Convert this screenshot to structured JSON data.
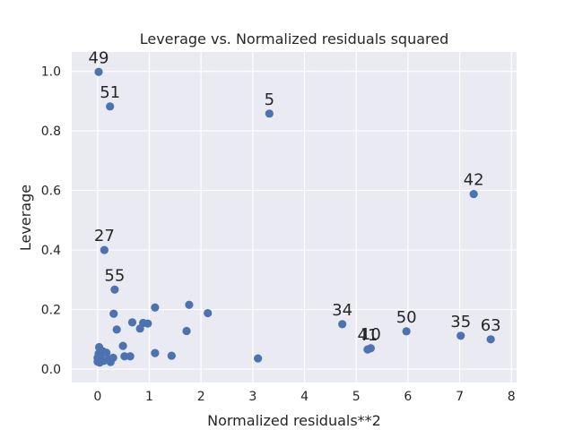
{
  "chart_data": {
    "type": "scatter",
    "title": "Leverage vs. Normalized residuals squared",
    "xlabel": "Normalized residuals**2",
    "ylabel": "Leverage",
    "xlim": [
      -0.5,
      8.1
    ],
    "ylim": [
      -0.045,
      1.065
    ],
    "xticks": [
      0,
      1,
      2,
      3,
      4,
      5,
      6,
      7,
      8
    ],
    "yticks": [
      0.0,
      0.2,
      0.4,
      0.6,
      0.8,
      1.0
    ],
    "xtick_labels": [
      "0",
      "1",
      "2",
      "3",
      "4",
      "5",
      "6",
      "7",
      "8"
    ],
    "ytick_labels": [
      "0.0",
      "0.2",
      "0.4",
      "0.6",
      "0.8",
      "1.0"
    ],
    "grid": true,
    "color": "#4c72b0",
    "background": "#eaeaf2",
    "points": [
      {
        "x": 0.02,
        "y": 0.998,
        "label": "49"
      },
      {
        "x": 0.24,
        "y": 0.882,
        "label": "51"
      },
      {
        "x": 3.32,
        "y": 0.858,
        "label": "5"
      },
      {
        "x": 7.27,
        "y": 0.588,
        "label": "42"
      },
      {
        "x": 0.13,
        "y": 0.4,
        "label": "27"
      },
      {
        "x": 0.33,
        "y": 0.267,
        "label": "55"
      },
      {
        "x": 4.73,
        "y": 0.151,
        "label": "34"
      },
      {
        "x": 5.97,
        "y": 0.127,
        "label": "50"
      },
      {
        "x": 7.02,
        "y": 0.112,
        "label": "35"
      },
      {
        "x": 7.6,
        "y": 0.1,
        "label": "63"
      },
      {
        "x": 5.22,
        "y": 0.066,
        "label": "41"
      },
      {
        "x": 5.28,
        "y": 0.07,
        "label": "10"
      },
      {
        "x": 1.11,
        "y": 0.207,
        "label": ""
      },
      {
        "x": 1.77,
        "y": 0.216,
        "label": ""
      },
      {
        "x": 2.13,
        "y": 0.188,
        "label": ""
      },
      {
        "x": 0.31,
        "y": 0.186,
        "label": ""
      },
      {
        "x": 0.67,
        "y": 0.157,
        "label": ""
      },
      {
        "x": 0.88,
        "y": 0.155,
        "label": ""
      },
      {
        "x": 0.97,
        "y": 0.153,
        "label": ""
      },
      {
        "x": 0.82,
        "y": 0.136,
        "label": ""
      },
      {
        "x": 0.37,
        "y": 0.133,
        "label": ""
      },
      {
        "x": 1.72,
        "y": 0.128,
        "label": ""
      },
      {
        "x": 0.49,
        "y": 0.078,
        "label": ""
      },
      {
        "x": 0.03,
        "y": 0.074,
        "label": ""
      },
      {
        "x": 0.1,
        "y": 0.06,
        "label": ""
      },
      {
        "x": 0.17,
        "y": 0.055,
        "label": ""
      },
      {
        "x": 1.11,
        "y": 0.054,
        "label": ""
      },
      {
        "x": 1.43,
        "y": 0.045,
        "label": ""
      },
      {
        "x": 0.52,
        "y": 0.043,
        "label": ""
      },
      {
        "x": 0.63,
        "y": 0.043,
        "label": ""
      },
      {
        "x": 3.1,
        "y": 0.036,
        "label": ""
      },
      {
        "x": 0.3,
        "y": 0.038,
        "label": ""
      },
      {
        "x": 0.22,
        "y": 0.032,
        "label": ""
      },
      {
        "x": 0.05,
        "y": 0.045,
        "label": ""
      },
      {
        "x": 0.0,
        "y": 0.038,
        "label": ""
      },
      {
        "x": 0.08,
        "y": 0.032,
        "label": ""
      },
      {
        "x": 0.0,
        "y": 0.025,
        "label": ""
      },
      {
        "x": 0.12,
        "y": 0.028,
        "label": ""
      },
      {
        "x": 0.25,
        "y": 0.024,
        "label": ""
      },
      {
        "x": 0.04,
        "y": 0.022,
        "label": ""
      },
      {
        "x": 0.02,
        "y": 0.052,
        "label": ""
      }
    ]
  }
}
